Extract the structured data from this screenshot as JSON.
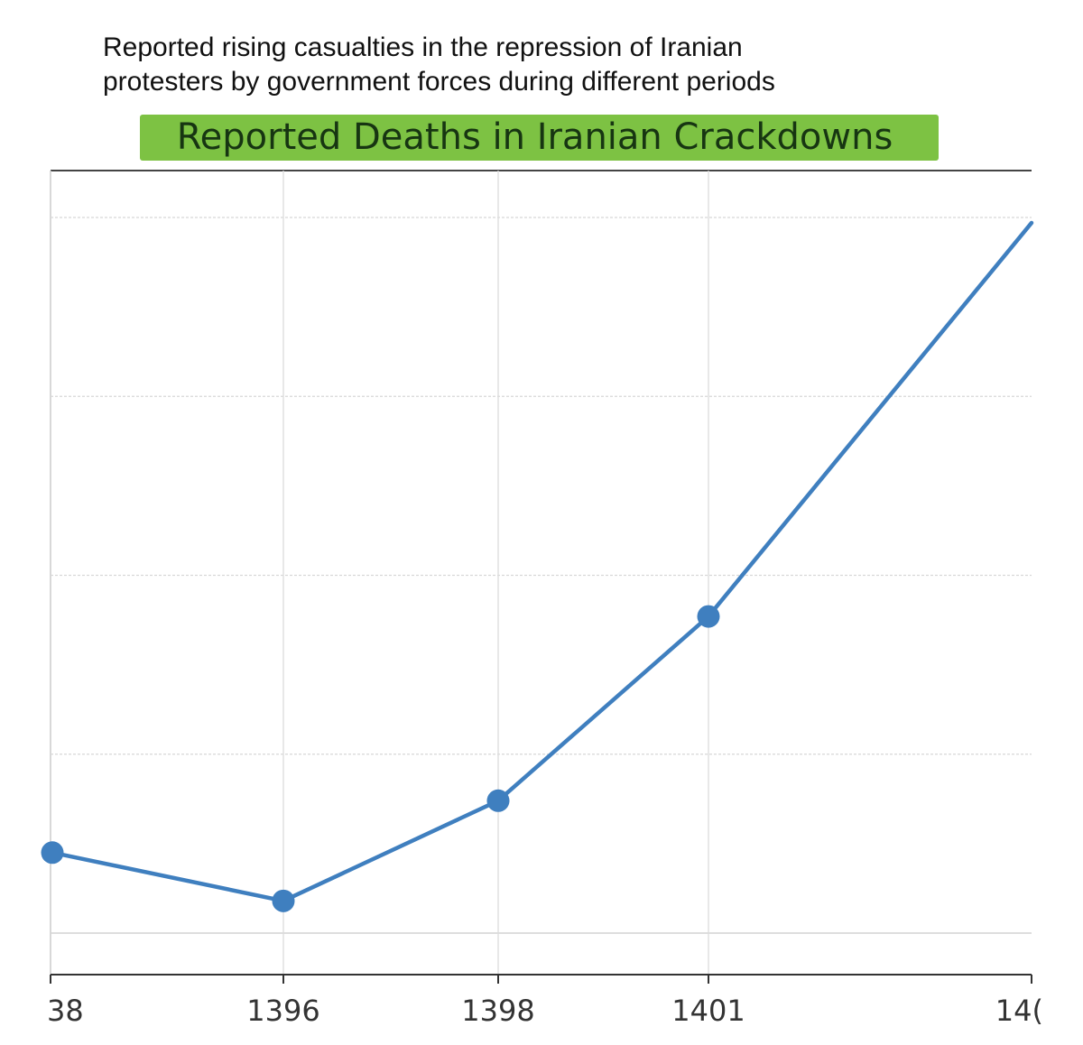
{
  "caption": {
    "line1": "Reported rising casualties in the repression of Iranian",
    "line2": "protesters by government forces during different periods"
  },
  "chart_data": {
    "type": "line",
    "title": "Reported Deaths in Iranian Crackdowns",
    "xlabel": "",
    "ylabel": "",
    "x_tick_labels": [
      "38",
      "1396",
      "1398",
      "1401",
      "14("
    ],
    "points": [
      {
        "x_index": 0,
        "y": 0.45
      },
      {
        "x_index": 1,
        "y": 0.18
      },
      {
        "x_index": 2,
        "y": 0.74
      },
      {
        "x_index": 3,
        "y": 1.77
      },
      {
        "x_index": 4,
        "y": 3.97
      }
    ],
    "ylim": [
      0,
      4.0
    ],
    "y_gridlines": [
      0,
      1,
      2,
      3,
      4
    ],
    "y_tick_labels_visible": false,
    "grid": true,
    "line_color": "#3f7fbf",
    "marker_color": "#3f7fbf",
    "last_point_marker": false,
    "title_background": "#7dc243"
  }
}
